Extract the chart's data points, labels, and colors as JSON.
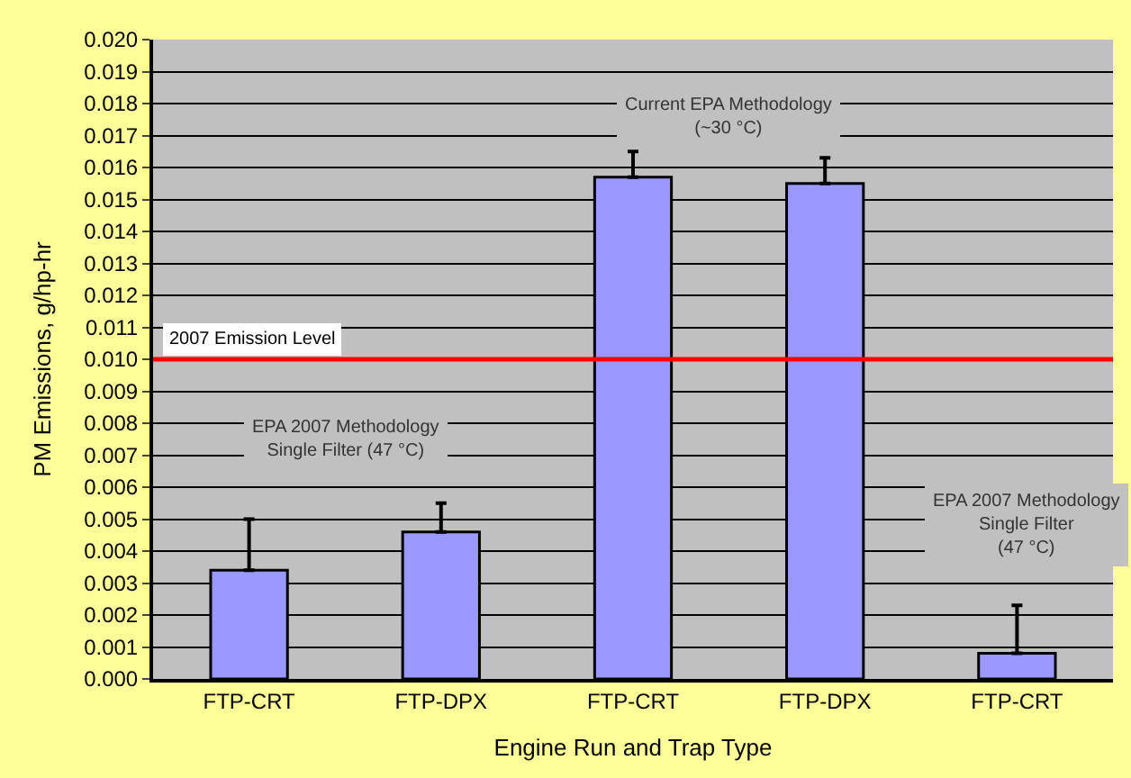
{
  "chart_data": {
    "type": "bar",
    "xlabel": "Engine Run and Trap Type",
    "ylabel": "PM Emissions, g/hp-hr",
    "categories": [
      "FTP-CRT",
      "FTP-DPX",
      "FTP-CRT",
      "FTP-DPX",
      "FTP-CRT"
    ],
    "values": [
      0.0034,
      0.0046,
      0.0157,
      0.0155,
      0.0008
    ],
    "errors": [
      [
        0.0034,
        0.005
      ],
      [
        0.0046,
        0.0055
      ],
      [
        0.0157,
        0.0165
      ],
      [
        0.0155,
        0.0163
      ],
      [
        0.0008,
        0.0023
      ]
    ],
    "color": "#9999ff",
    "ylim": [
      0,
      0.02
    ],
    "yticks": [
      {
        "value": 0,
        "label": "0.000"
      },
      {
        "value": 0.001,
        "label": "0.001"
      },
      {
        "value": 0.002,
        "label": "0.002"
      },
      {
        "value": 0.003,
        "label": "0.003"
      },
      {
        "value": 0.004,
        "label": "0.004"
      },
      {
        "value": 0.005,
        "label": "0.005"
      },
      {
        "value": 0.006,
        "label": "0.006"
      },
      {
        "value": 0.007,
        "label": "0.007"
      },
      {
        "value": 0.008,
        "label": "0.008"
      },
      {
        "value": 0.009,
        "label": "0.009"
      },
      {
        "value": 0.01,
        "label": "0.010"
      },
      {
        "value": 0.011,
        "label": "0.011"
      },
      {
        "value": 0.012,
        "label": "0.012"
      },
      {
        "value": 0.013,
        "label": "0.013"
      },
      {
        "value": 0.014,
        "label": "0.014"
      },
      {
        "value": 0.015,
        "label": "0.015"
      },
      {
        "value": 0.016,
        "label": "0.016"
      },
      {
        "value": 0.017,
        "label": "0.017"
      },
      {
        "value": 0.018,
        "label": "0.018"
      },
      {
        "value": 0.019,
        "label": "0.019"
      },
      {
        "value": 0.02,
        "label": "0.020"
      }
    ],
    "grid": "y",
    "ref_lines": [
      {
        "axis": "y",
        "value": 0.01,
        "label": "2007 Emission Level",
        "color": "#ff0000"
      }
    ],
    "annotations": [
      "EPA 2007 Methodology\nSingle Filter (47 °C)",
      "Current EPA Methodology\n(~30 °C)",
      "EPA 2007 Methodology\nSingle Filter\n(47 °C)"
    ]
  }
}
